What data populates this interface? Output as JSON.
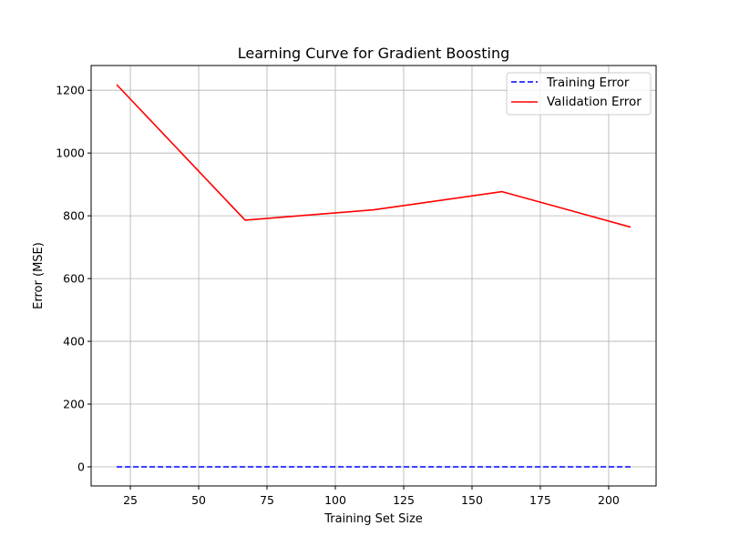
{
  "chart_data": {
    "type": "line",
    "title": "Learning Curve for Gradient Boosting",
    "xlabel": "Training Set Size",
    "ylabel": "Error (MSE)",
    "xlim": [
      10.65,
      217.35
    ],
    "ylim": [
      -60.9,
      1278.9
    ],
    "xticks": [
      25,
      50,
      75,
      100,
      125,
      150,
      175,
      200
    ],
    "yticks": [
      0,
      200,
      400,
      600,
      800,
      1000,
      1200
    ],
    "grid": true,
    "legend_position": "upper right",
    "x": [
      20,
      67,
      114,
      161,
      208
    ],
    "series": [
      {
        "name": "Training Error",
        "values": [
          0,
          0,
          0,
          0,
          0
        ],
        "color": "#0000ff",
        "style": "dashed"
      },
      {
        "name": "Validation Error",
        "values": [
          1218,
          786,
          819,
          877,
          764
        ],
        "color": "#ff0000",
        "style": "solid"
      }
    ]
  }
}
